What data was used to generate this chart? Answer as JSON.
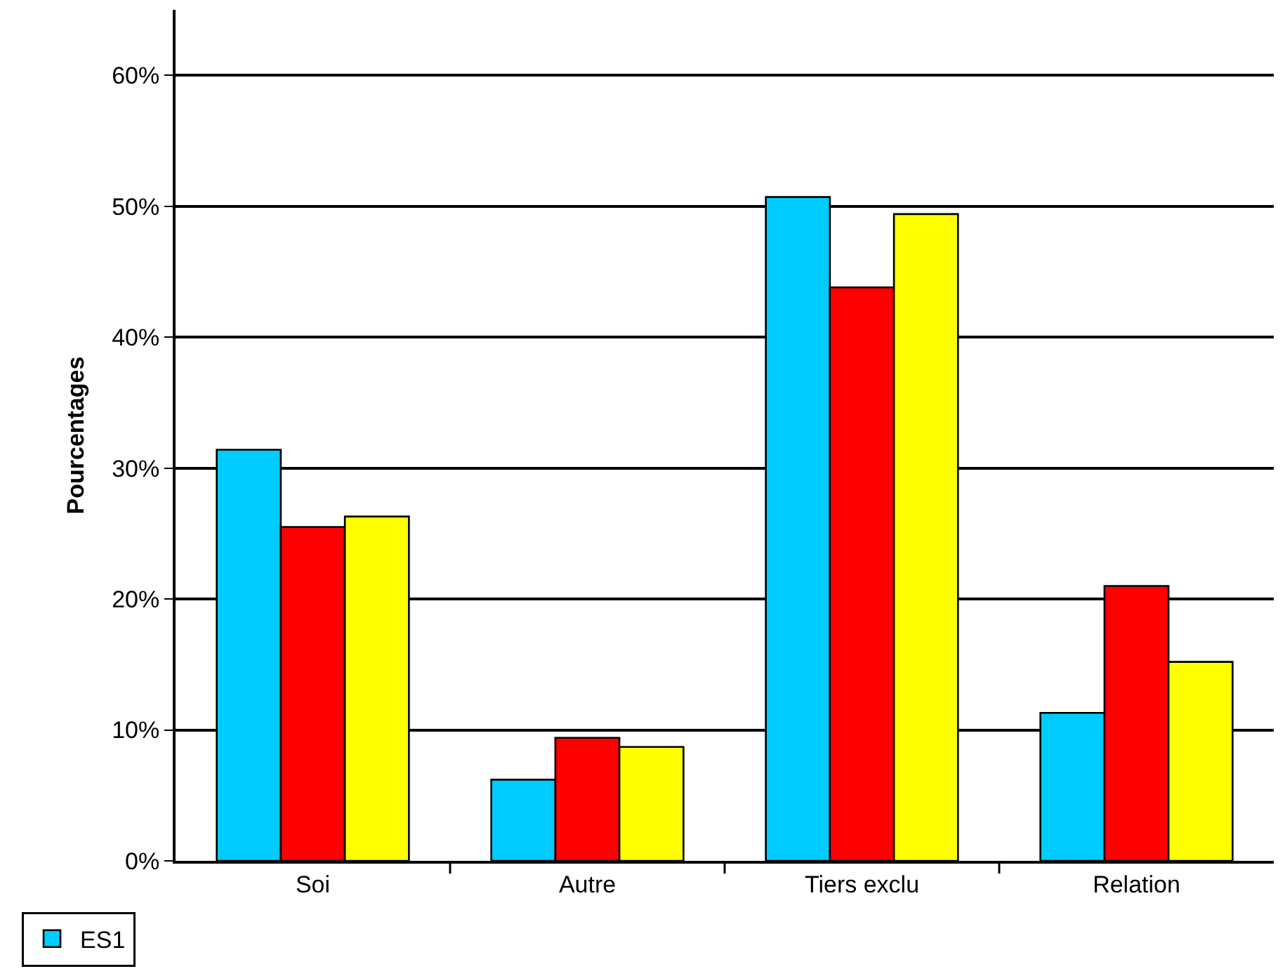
{
  "chart_data": {
    "type": "bar",
    "ylabel": "Pourcentages",
    "categories": [
      "Soi",
      "Autre",
      "Tiers exclu",
      "Relation"
    ],
    "series": [
      {
        "name": "ES1",
        "color": "#00ccff",
        "values": [
          31.4,
          6.2,
          50.7,
          11.3
        ]
      },
      {
        "color": "#ff0000",
        "values": [
          25.5,
          9.4,
          43.8,
          21.0
        ]
      },
      {
        "color": "#ffff00",
        "values": [
          26.3,
          8.7,
          49.4,
          15.2
        ]
      }
    ],
    "ylim": [
      0,
      65
    ],
    "yticks": [
      {
        "value": 0,
        "label": "0%"
      },
      {
        "value": 10,
        "label": "10%"
      },
      {
        "value": 20,
        "label": "20%"
      },
      {
        "value": 30,
        "label": "30%"
      },
      {
        "value": 40,
        "label": "40%"
      },
      {
        "value": 50,
        "label": "50%"
      },
      {
        "value": 60,
        "label": "60%"
      }
    ],
    "grid": "y",
    "legend": "bottom left"
  }
}
